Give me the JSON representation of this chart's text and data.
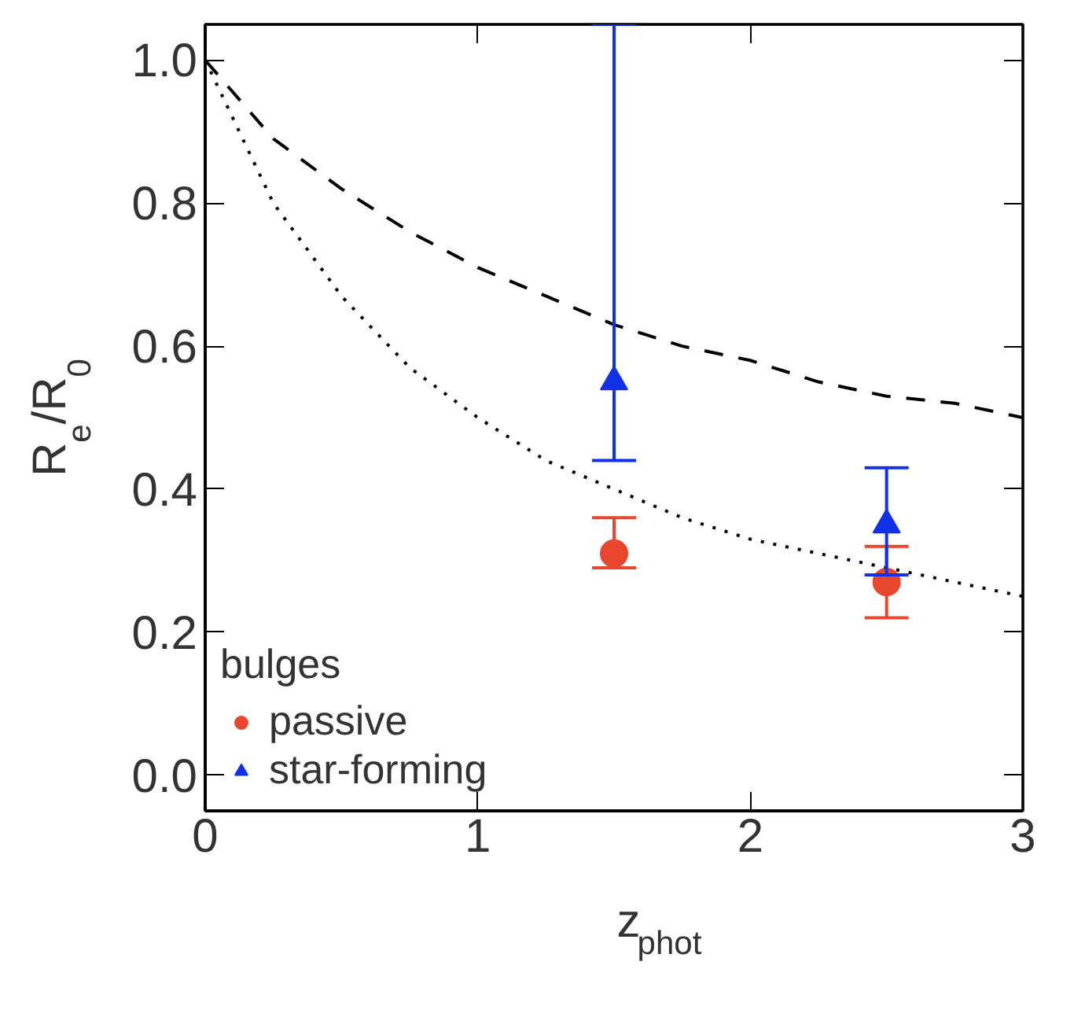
{
  "chart_data": {
    "type": "scatter",
    "xlabel": "z$_{phot}$",
    "ylabel": "R$_{e}$/R$_{0}$",
    "legend_title": "bulges",
    "xlim": [
      0,
      3
    ],
    "ylim": [
      -0.05,
      1.05
    ],
    "xticks": [
      0,
      1,
      2,
      3
    ],
    "yticks": [
      {
        "value": 0,
        "label": "0.0"
      },
      0.2,
      0.4,
      0.6,
      0.8,
      {
        "value": 1,
        "label": "1.0"
      }
    ],
    "legend": "bottom left",
    "grid": false,
    "series": [
      {
        "name": "passive",
        "marker": "circle",
        "color": "#e8462d",
        "x": [
          1.5,
          2.5
        ],
        "values": [
          0.31,
          0.27
        ],
        "errors": [
          [
            0.29,
            0.36
          ],
          [
            0.22,
            0.32
          ]
        ]
      },
      {
        "name": "star-forming",
        "marker": "triangle",
        "color": "#1230e6",
        "x": [
          1.5,
          2.5
        ],
        "values": [
          0.55,
          0.35
        ],
        "errors": [
          [
            0.44,
            1.05
          ],
          [
            0.28,
            0.43
          ]
        ]
      },
      {
        "type": "line",
        "line_style": "dashed",
        "marker": "none",
        "color": "#000000",
        "x": [
          0,
          0.25,
          0.5,
          0.75,
          1,
          1.25,
          1.5,
          1.75,
          2,
          2.25,
          2.5,
          2.75,
          3
        ],
        "values": [
          1,
          0.89,
          0.82,
          0.76,
          0.71,
          0.67,
          0.63,
          0.6,
          0.58,
          0.55,
          0.53,
          0.52,
          0.5
        ]
      },
      {
        "type": "line",
        "line_style": "dotted",
        "marker": "none",
        "color": "#000000",
        "x": [
          0,
          0.25,
          0.5,
          0.75,
          1,
          1.25,
          1.5,
          1.75,
          2,
          2.25,
          2.5,
          2.75,
          3
        ],
        "values": [
          1,
          0.8,
          0.67,
          0.57,
          0.5,
          0.44,
          0.4,
          0.36,
          0.33,
          0.31,
          0.29,
          0.27,
          0.25
        ]
      }
    ]
  }
}
